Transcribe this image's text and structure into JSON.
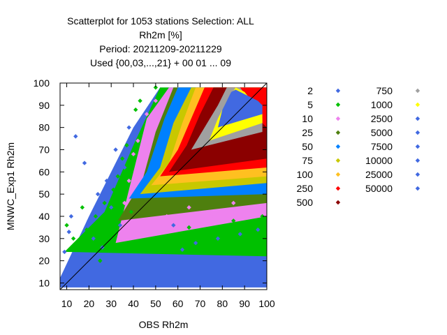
{
  "chart_data": {
    "type": "scatter",
    "title_lines": [
      "Scatterplot for 1053 stations Selection: ALL",
      "Rh2m [%]",
      "Period: 20211209-20211229",
      "Used {00,03,...,21} + 00 01 ... 09"
    ],
    "xlabel": "OBS Rh2m",
    "ylabel": "MNWC_Exp1 Rh2m",
    "xlim": [
      7,
      100
    ],
    "ylim": [
      7,
      100
    ],
    "x_ticks": [
      10,
      20,
      30,
      40,
      50,
      60,
      70,
      80,
      90,
      100
    ],
    "y_ticks": [
      10,
      20,
      30,
      40,
      50,
      60,
      70,
      80,
      90,
      100
    ],
    "grid": false,
    "diagonal_line": true,
    "legend_position": "right",
    "legend": [
      {
        "label": "2",
        "color": "#4169e1"
      },
      {
        "label": "5",
        "color": "#00c000"
      },
      {
        "label": "10",
        "color": "#ee82ee"
      },
      {
        "label": "25",
        "color": "#4e7f0e"
      },
      {
        "label": "50",
        "color": "#0080ff"
      },
      {
        "label": "75",
        "color": "#c8c800"
      },
      {
        "label": "100",
        "color": "#ffc020"
      },
      {
        "label": "250",
        "color": "#ff0000"
      },
      {
        "label": "500",
        "color": "#8b0000"
      },
      {
        "label": "750",
        "color": "#a0a0a0"
      },
      {
        "label": "1000",
        "color": "#ffff00"
      },
      {
        "label": "2500",
        "color": "#4169e1"
      },
      {
        "label": "5000",
        "color": "#4169e1"
      },
      {
        "label": "7500",
        "color": "#4169e1"
      },
      {
        "label": "10000",
        "color": "#4169e1"
      },
      {
        "label": "25000",
        "color": "#4169e1"
      },
      {
        "label": "50000",
        "color": "#4169e1"
      }
    ],
    "density_bands": [
      {
        "level": "2",
        "color": "#4169e1",
        "points": [
          [
            5,
            8
          ],
          [
            20,
            40
          ],
          [
            40,
            80
          ],
          [
            52,
            98
          ],
          [
            100,
            98
          ],
          [
            100,
            8
          ]
        ]
      },
      {
        "level": "5",
        "color": "#00c000",
        "points": [
          [
            9,
            24
          ],
          [
            27,
            42
          ],
          [
            40,
            72
          ],
          [
            52,
            98
          ],
          [
            100,
            98
          ],
          [
            100,
            22
          ]
        ]
      },
      {
        "level": "10",
        "color": "#ee82ee",
        "points": [
          [
            32,
            28
          ],
          [
            40,
            60
          ],
          [
            46,
            84
          ],
          [
            56,
            98
          ],
          [
            100,
            98
          ],
          [
            100,
            40
          ]
        ]
      },
      {
        "level": "25",
        "color": "#4e7f0e",
        "points": [
          [
            33,
            38
          ],
          [
            44,
            56
          ],
          [
            50,
            78
          ],
          [
            58,
            98
          ],
          [
            100,
            98
          ],
          [
            100,
            46
          ]
        ]
      },
      {
        "level": "50",
        "color": "#0080ff",
        "points": [
          [
            38,
            48
          ],
          [
            46,
            60
          ],
          [
            54,
            84
          ],
          [
            60,
            98
          ],
          [
            100,
            98
          ],
          [
            100,
            50
          ]
        ]
      },
      {
        "level": "75",
        "color": "#c8c800",
        "points": [
          [
            43,
            50
          ],
          [
            52,
            62
          ],
          [
            58,
            82
          ],
          [
            66,
            98
          ],
          [
            100,
            98
          ],
          [
            100,
            55
          ]
        ]
      },
      {
        "level": "100",
        "color": "#ffc020",
        "points": [
          [
            48,
            54
          ],
          [
            56,
            64
          ],
          [
            62,
            82
          ],
          [
            68,
            98
          ],
          [
            100,
            98
          ],
          [
            100,
            58
          ]
        ]
      },
      {
        "level": "250",
        "color": "#ff0000",
        "points": [
          [
            52,
            58
          ],
          [
            60,
            70
          ],
          [
            66,
            84
          ],
          [
            72,
            98
          ],
          [
            100,
            98
          ],
          [
            100,
            62
          ]
        ]
      },
      {
        "level": "500",
        "color": "#8b0000",
        "points": [
          [
            56,
            60
          ],
          [
            64,
            72
          ],
          [
            70,
            86
          ],
          [
            76,
            98
          ],
          [
            82,
            98
          ],
          [
            100,
            80
          ],
          [
            100,
            66
          ]
        ]
      },
      {
        "level": "750",
        "color": "#a0a0a0",
        "points": [
          [
            66,
            70
          ],
          [
            72,
            80
          ],
          [
            78,
            90
          ],
          [
            82,
            98
          ],
          [
            88,
            98
          ],
          [
            98,
            84
          ],
          [
            98,
            78
          ]
        ]
      },
      {
        "level": "1000",
        "color": "#ffff00",
        "points": [
          [
            74,
            74
          ],
          [
            78,
            84
          ],
          [
            82,
            92
          ],
          [
            86,
            98
          ],
          [
            90,
            96
          ],
          [
            98,
            86
          ],
          [
            98,
            82
          ]
        ]
      },
      {
        "level": "2500",
        "color": "#4169e1",
        "points": [
          [
            78,
            80
          ],
          [
            80,
            88
          ],
          [
            84,
            96
          ],
          [
            86,
            97
          ],
          [
            96,
            92
          ],
          [
            98,
            90
          ],
          [
            98,
            86
          ]
        ]
      }
    ],
    "scatter_points": [
      {
        "x": 9,
        "y": 24,
        "color": "#4169e1"
      },
      {
        "x": 11,
        "y": 33,
        "color": "#4169e1"
      },
      {
        "x": 12,
        "y": 40,
        "color": "#4169e1"
      },
      {
        "x": 14,
        "y": 76,
        "color": "#4169e1"
      },
      {
        "x": 16,
        "y": 22,
        "color": "#4169e1"
      },
      {
        "x": 18,
        "y": 64,
        "color": "#4169e1"
      },
      {
        "x": 20,
        "y": 38,
        "color": "#4169e1"
      },
      {
        "x": 22,
        "y": 30,
        "color": "#4169e1"
      },
      {
        "x": 24,
        "y": 50,
        "color": "#4169e1"
      },
      {
        "x": 26,
        "y": 26,
        "color": "#4169e1"
      },
      {
        "x": 28,
        "y": 56,
        "color": "#4169e1"
      },
      {
        "x": 30,
        "y": 44,
        "color": "#4169e1"
      },
      {
        "x": 32,
        "y": 70,
        "color": "#4169e1"
      },
      {
        "x": 34,
        "y": 36,
        "color": "#4169e1"
      },
      {
        "x": 36,
        "y": 62,
        "color": "#4169e1"
      },
      {
        "x": 38,
        "y": 80,
        "color": "#4169e1"
      },
      {
        "x": 10,
        "y": 36,
        "color": "#00c000"
      },
      {
        "x": 13,
        "y": 30,
        "color": "#00c000"
      },
      {
        "x": 15,
        "y": 28,
        "color": "#00c000"
      },
      {
        "x": 17,
        "y": 44,
        "color": "#00c000"
      },
      {
        "x": 19,
        "y": 34,
        "color": "#00c000"
      },
      {
        "x": 21,
        "y": 28,
        "color": "#00c000"
      },
      {
        "x": 23,
        "y": 40,
        "color": "#00c000"
      },
      {
        "x": 25,
        "y": 20,
        "color": "#00c000"
      },
      {
        "x": 27,
        "y": 46,
        "color": "#00c000"
      },
      {
        "x": 29,
        "y": 34,
        "color": "#00c000"
      },
      {
        "x": 31,
        "y": 52,
        "color": "#00c000"
      },
      {
        "x": 33,
        "y": 58,
        "color": "#00c000"
      },
      {
        "x": 35,
        "y": 66,
        "color": "#00c000"
      },
      {
        "x": 37,
        "y": 72,
        "color": "#00c000"
      },
      {
        "x": 39,
        "y": 42,
        "color": "#00c000"
      },
      {
        "x": 41,
        "y": 88,
        "color": "#00c000"
      },
      {
        "x": 43,
        "y": 92,
        "color": "#00c000"
      },
      {
        "x": 50,
        "y": 98,
        "color": "#00c000"
      },
      {
        "x": 60,
        "y": 26,
        "color": "#00c000"
      },
      {
        "x": 70,
        "y": 30,
        "color": "#00c000"
      },
      {
        "x": 80,
        "y": 34,
        "color": "#00c000"
      },
      {
        "x": 90,
        "y": 36,
        "color": "#00c000"
      },
      {
        "x": 98,
        "y": 40,
        "color": "#00c000"
      },
      {
        "x": 65,
        "y": 35,
        "color": "#00c000"
      },
      {
        "x": 75,
        "y": 32,
        "color": "#00c000"
      },
      {
        "x": 85,
        "y": 38,
        "color": "#00c000"
      },
      {
        "x": 58,
        "y": 36,
        "color": "#4169e1"
      },
      {
        "x": 68,
        "y": 28,
        "color": "#4169e1"
      },
      {
        "x": 78,
        "y": 30,
        "color": "#4169e1"
      },
      {
        "x": 88,
        "y": 32,
        "color": "#4169e1"
      },
      {
        "x": 96,
        "y": 34,
        "color": "#4169e1"
      },
      {
        "x": 62,
        "y": 25,
        "color": "#4169e1"
      },
      {
        "x": 40,
        "y": 68,
        "color": "#ee82ee"
      },
      {
        "x": 42,
        "y": 74,
        "color": "#ee82ee"
      },
      {
        "x": 36,
        "y": 46,
        "color": "#ee82ee"
      },
      {
        "x": 38,
        "y": 56,
        "color": "#ee82ee"
      },
      {
        "x": 55,
        "y": 40,
        "color": "#ee82ee"
      },
      {
        "x": 65,
        "y": 44,
        "color": "#ee82ee"
      },
      {
        "x": 75,
        "y": 40,
        "color": "#ee82ee"
      },
      {
        "x": 85,
        "y": 46,
        "color": "#ee82ee"
      },
      {
        "x": 50,
        "y": 92,
        "color": "#ee82ee"
      },
      {
        "x": 46,
        "y": 86,
        "color": "#ee82ee"
      }
    ]
  }
}
